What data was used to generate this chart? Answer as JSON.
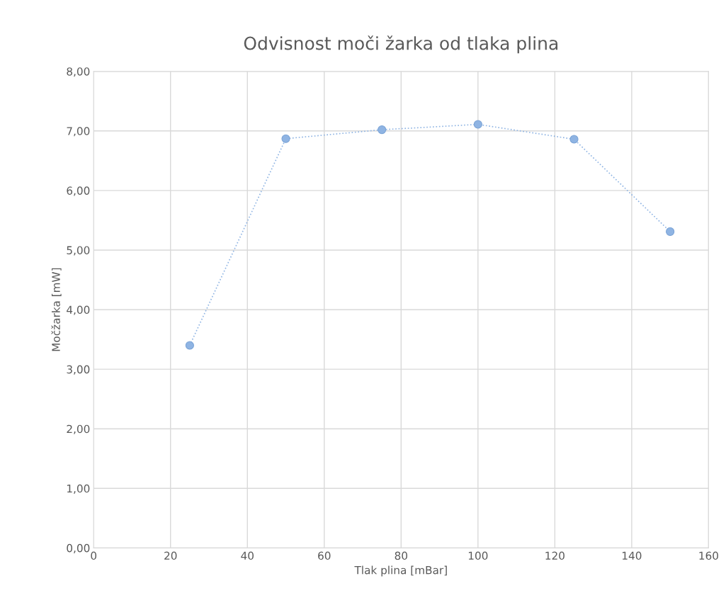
{
  "chart_data": {
    "type": "line",
    "title": "Odvisnost moči žarka od tlaka plina",
    "xlabel": "Tlak plina [mBar]",
    "ylabel": "Močžarka [mW]",
    "x": [
      25,
      50,
      75,
      100,
      125,
      150
    ],
    "series": [
      {
        "color": "#8fb4e3",
        "values": [
          3.4,
          6.87,
          7.02,
          7.11,
          6.86,
          5.31
        ]
      }
    ],
    "xlim": [
      0,
      160
    ],
    "xticks": [
      0,
      20,
      40,
      60,
      80,
      100,
      120,
      140,
      160
    ],
    "ylim": [
      0,
      8
    ],
    "yticks": [
      {
        "value": 0,
        "label": "0,00"
      },
      {
        "value": 1,
        "label": "1,00"
      },
      {
        "value": 2,
        "label": "2,00"
      },
      {
        "value": 3,
        "label": "3,00"
      },
      {
        "value": 4,
        "label": "4,00"
      },
      {
        "value": 5,
        "label": "5,00"
      },
      {
        "value": 6,
        "label": "6,00"
      },
      {
        "value": 7,
        "label": "7,00"
      },
      {
        "value": 8,
        "label": "8,00"
      }
    ],
    "grid": true,
    "marker": "circle",
    "line_style": "dotted"
  }
}
